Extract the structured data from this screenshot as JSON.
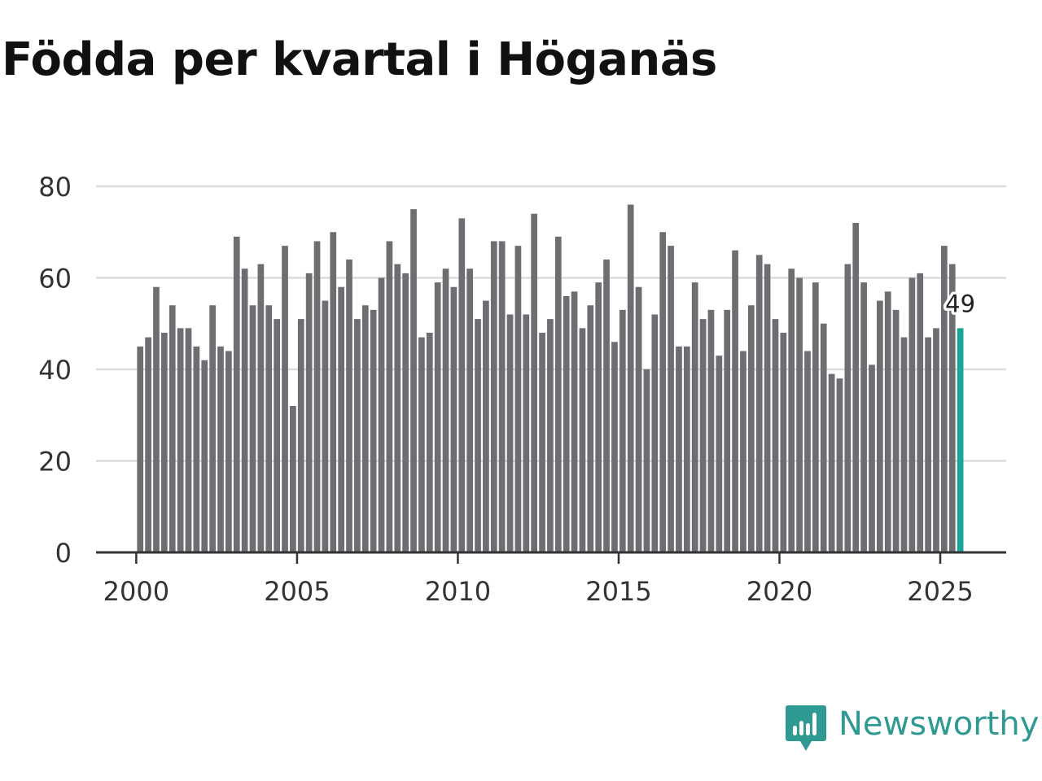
{
  "title": "Födda per kvartal i Höganäs",
  "brand": {
    "name": "Newsworthy",
    "icon": "newsworthy-logo-icon",
    "color": "#2e9a91"
  },
  "colors": {
    "bar": "#6e6d72",
    "highlight": "#19a596",
    "grid": "#dcdcdc",
    "axis": "#333333",
    "text": "#333333"
  },
  "chart_data": {
    "type": "bar",
    "title": "Födda per kvartal i Höganäs",
    "xlabel": "",
    "ylabel": "",
    "ylim": [
      0,
      80
    ],
    "yticks": [
      0,
      20,
      40,
      60,
      80
    ],
    "xticks": [
      2000,
      2005,
      2010,
      2015,
      2020,
      2025
    ],
    "xlim": [
      1998.75,
      2027.05
    ],
    "grid": true,
    "start_year": 2000,
    "start_quarter": 1,
    "values": [
      45,
      47,
      58,
      48,
      54,
      49,
      49,
      45,
      42,
      54,
      45,
      44,
      69,
      62,
      54,
      63,
      54,
      51,
      67,
      32,
      51,
      61,
      68,
      55,
      70,
      58,
      64,
      51,
      54,
      53,
      60,
      68,
      63,
      61,
      75,
      47,
      48,
      59,
      62,
      58,
      73,
      62,
      51,
      55,
      68,
      68,
      52,
      67,
      52,
      74,
      48,
      51,
      69,
      56,
      57,
      49,
      54,
      59,
      64,
      46,
      53,
      76,
      58,
      40,
      52,
      70,
      67,
      45,
      45,
      59,
      51,
      53,
      43,
      53,
      66,
      44,
      54,
      65,
      63,
      51,
      48,
      62,
      60,
      44,
      59,
      50,
      39,
      38,
      63,
      72,
      59,
      41,
      55,
      57,
      53,
      47,
      60,
      61,
      47,
      49,
      67,
      63,
      49
    ],
    "highlight_last": true,
    "annotation": "49"
  }
}
